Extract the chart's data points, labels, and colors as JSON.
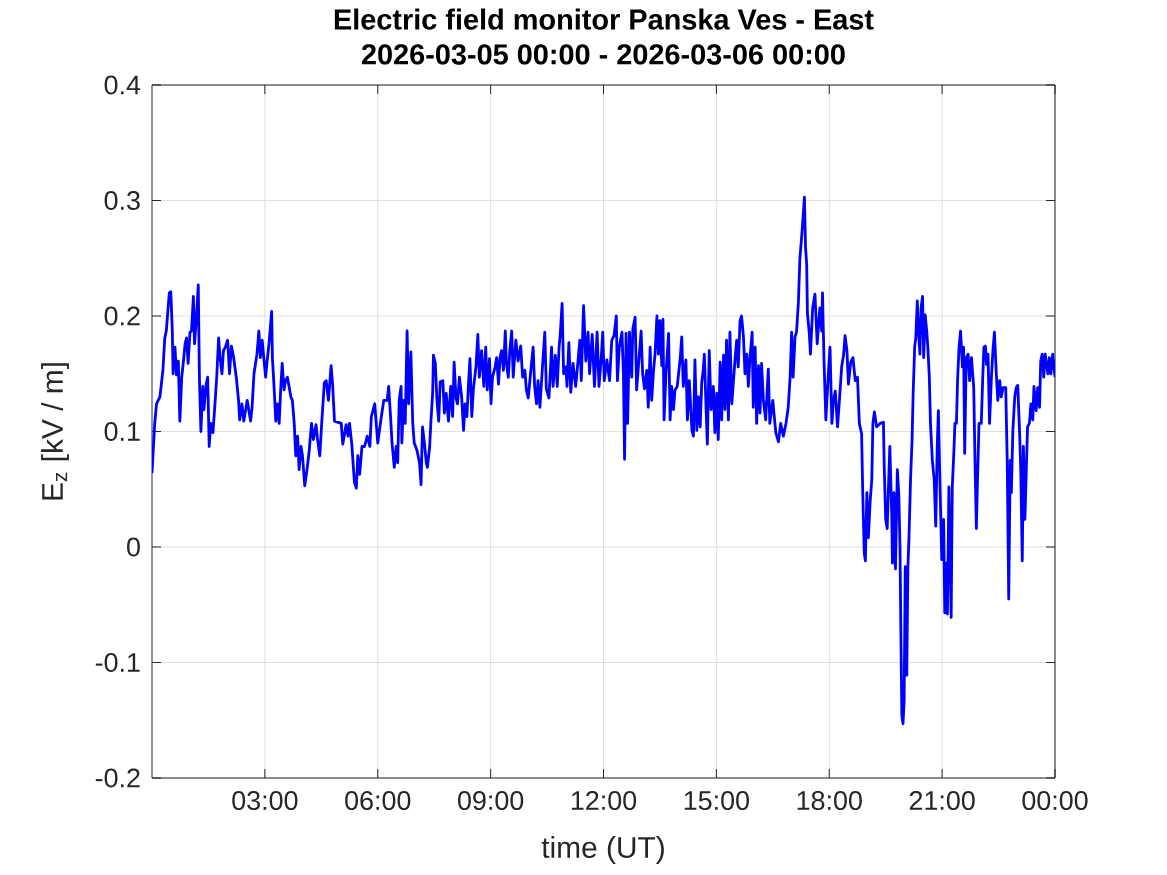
{
  "chart_data": {
    "type": "line",
    "title": "Electric field monitor Panska Ves - East",
    "subtitle": "2026-03-05 00:00 - 2026-03-06 00:00",
    "xlabel": "time (UT)",
    "ylabel": "E$_{z}$ [kV / m]",
    "xlim": [
      0,
      24
    ],
    "ylim": [
      -0.2,
      0.4
    ],
    "xticks": [
      {
        "value": 3,
        "label": "03:00"
      },
      {
        "value": 6,
        "label": "06:00"
      },
      {
        "value": 9,
        "label": "09:00"
      },
      {
        "value": 12,
        "label": "12:00"
      },
      {
        "value": 15,
        "label": "15:00"
      },
      {
        "value": 18,
        "label": "18:00"
      },
      {
        "value": 21,
        "label": "21:00"
      },
      {
        "value": 24,
        "label": "00:00"
      }
    ],
    "yticks": [
      -0.2,
      -0.1,
      0,
      0.1,
      0.2,
      0.3,
      0.4
    ],
    "grid": true,
    "x": [
      0.0,
      0.07,
      0.12,
      0.21,
      0.29,
      0.34,
      0.38,
      0.46,
      0.5,
      0.54,
      0.56,
      0.61,
      0.65,
      0.7,
      0.74,
      0.79,
      0.83,
      0.88,
      0.92,
      0.96,
      1.01,
      1.05,
      1.1,
      1.13,
      1.17,
      1.23,
      1.26,
      1.3,
      1.35,
      1.38,
      1.44,
      1.48,
      1.52,
      1.56,
      1.62,
      1.68,
      1.72,
      1.77,
      1.81,
      1.86,
      1.9,
      1.95,
      2.01,
      2.06,
      2.11,
      2.17,
      2.24,
      2.3,
      2.33,
      2.39,
      2.44,
      2.53,
      2.62,
      2.66,
      2.71,
      2.79,
      2.84,
      2.88,
      2.93,
      2.97,
      3.02,
      3.06,
      3.11,
      3.18,
      3.2,
      3.24,
      3.29,
      3.33,
      3.38,
      3.42,
      3.46,
      3.51,
      3.55,
      3.6,
      3.69,
      3.73,
      3.78,
      3.82,
      3.87,
      3.91,
      3.96,
      4.0,
      4.06,
      4.12,
      4.18,
      4.24,
      4.29,
      4.36,
      4.4,
      4.46,
      4.51,
      4.58,
      4.63,
      4.69,
      4.76,
      4.8,
      4.85,
      5.03,
      5.07,
      5.16,
      5.21,
      5.25,
      5.31,
      5.38,
      5.43,
      5.47,
      5.52,
      5.58,
      5.65,
      5.72,
      5.79,
      5.83,
      5.92,
      6.0,
      6.07,
      6.16,
      6.25,
      6.29,
      6.34,
      6.38,
      6.44,
      6.49,
      6.53,
      6.57,
      6.62,
      6.64,
      6.69,
      6.73,
      6.78,
      6.82,
      6.88,
      6.93,
      6.97,
      7.04,
      7.11,
      7.15,
      7.19,
      7.24,
      7.29,
      7.32,
      7.38,
      7.41,
      7.46,
      7.48,
      7.53,
      7.57,
      7.62,
      7.66,
      7.73,
      7.77,
      7.82,
      7.88,
      7.94,
      7.99,
      8.03,
      8.08,
      8.12,
      8.17,
      8.23,
      8.28,
      8.32,
      8.37,
      8.41,
      8.45,
      8.5,
      8.54,
      8.61,
      8.66,
      8.7,
      8.76,
      8.82,
      8.87,
      8.91,
      8.97,
      9.01,
      9.05,
      9.12,
      9.16,
      9.21,
      9.25,
      9.29,
      9.34,
      9.39,
      9.42,
      9.47,
      9.51,
      9.56,
      9.6,
      9.67,
      9.73,
      9.8,
      9.85,
      9.91,
      9.95,
      10.0,
      10.06,
      10.13,
      10.17,
      10.22,
      10.26,
      10.31,
      10.38,
      10.44,
      10.48,
      10.55,
      10.62,
      10.66,
      10.72,
      10.77,
      10.82,
      10.85,
      10.9,
      10.94,
      11.0,
      11.03,
      11.08,
      11.13,
      11.19,
      11.26,
      11.32,
      11.37,
      11.41,
      11.47,
      11.53,
      11.59,
      11.63,
      11.7,
      11.76,
      11.83,
      11.88,
      11.94,
      11.98,
      12.02,
      12.09,
      12.16,
      12.22,
      12.28,
      12.34,
      12.37,
      12.42,
      12.49,
      12.53,
      12.56,
      12.6,
      12.64,
      12.69,
      12.75,
      12.78,
      12.84,
      12.88,
      12.96,
      13.0,
      13.04,
      13.09,
      13.15,
      13.19,
      13.24,
      13.28,
      13.33,
      13.37,
      13.42,
      13.46,
      13.5,
      13.55,
      13.58,
      13.61,
      13.66,
      13.73,
      13.77,
      13.81,
      13.86,
      13.9,
      13.96,
      14.04,
      14.08,
      14.12,
      14.19,
      14.23,
      14.28,
      14.35,
      14.39,
      14.43,
      14.48,
      14.52,
      14.57,
      14.61,
      14.65,
      14.68,
      14.73,
      14.76,
      14.81,
      14.86,
      14.92,
      14.96,
      15.01,
      15.05,
      15.1,
      15.14,
      15.19,
      15.23,
      15.27,
      15.32,
      15.36,
      15.41,
      15.45,
      15.5,
      15.54,
      15.58,
      15.63,
      15.67,
      15.72,
      15.76,
      15.81,
      15.85,
      15.89,
      15.95,
      15.98,
      16.03,
      16.07,
      16.12,
      16.16,
      16.2,
      16.25,
      16.31,
      16.38,
      16.42,
      16.5,
      16.53,
      16.58,
      16.65,
      16.71,
      16.78,
      16.85,
      16.91,
      16.96,
      17.0,
      17.04,
      17.09,
      17.13,
      17.18,
      17.22,
      17.26,
      17.29,
      17.34,
      17.37,
      17.4,
      17.42,
      17.47,
      17.5,
      17.56,
      17.62,
      17.68,
      17.75,
      17.8,
      17.82,
      17.86,
      17.91,
      17.97,
      18.02,
      18.07,
      18.11,
      18.16,
      18.22,
      18.27,
      18.33,
      18.38,
      18.42,
      18.47,
      18.51,
      18.57,
      18.63,
      18.69,
      18.75,
      18.8,
      18.86,
      18.89,
      18.93,
      18.96,
      19.0,
      19.04,
      19.09,
      19.13,
      19.16,
      19.2,
      19.26,
      19.35,
      19.44,
      19.46,
      19.5,
      19.54,
      19.58,
      19.61,
      19.66,
      19.68,
      19.72,
      19.76,
      19.81,
      19.85,
      19.88,
      19.91,
      19.93,
      19.96,
      19.99,
      20.02,
      20.06,
      20.09,
      20.12,
      20.16,
      20.2,
      20.23,
      20.27,
      20.3,
      20.34,
      20.37,
      20.41,
      20.44,
      20.48,
      20.51,
      20.55,
      20.59,
      20.62,
      20.66,
      20.69,
      20.74,
      20.79,
      20.83,
      20.87,
      20.9,
      20.94,
      20.99,
      21.04,
      21.07,
      21.11,
      21.14,
      21.18,
      21.2,
      21.24,
      21.27,
      21.31,
      21.34,
      21.38,
      21.41,
      21.45,
      21.49,
      21.54,
      21.57,
      21.6,
      21.64,
      21.69,
      21.73,
      21.78,
      21.84,
      21.87,
      21.91,
      21.94,
      21.98,
      22.04,
      22.08,
      22.11,
      22.15,
      22.18,
      22.22,
      22.26,
      22.31,
      22.35,
      22.39,
      22.44,
      22.48,
      22.53,
      22.57,
      22.62,
      22.69,
      22.73,
      22.77,
      22.81,
      22.84,
      22.88,
      22.93,
      22.97,
      23.01,
      23.06,
      23.09,
      23.13,
      23.16,
      23.2,
      23.23,
      23.27,
      23.32,
      23.36,
      23.41,
      23.44,
      23.5,
      23.54,
      23.59,
      23.62,
      23.66,
      23.7,
      23.74,
      23.81,
      23.85,
      23.89,
      23.94,
      24.0
    ],
    "series": [
      {
        "color": "#0000ff",
        "values": [
          0.064,
          0.106,
          0.124,
          0.13,
          0.153,
          0.181,
          0.187,
          0.22,
          0.221,
          0.187,
          0.15,
          0.173,
          0.149,
          0.161,
          0.109,
          0.147,
          0.159,
          0.176,
          0.181,
          0.159,
          0.186,
          0.187,
          0.217,
          0.176,
          0.193,
          0.227,
          0.147,
          0.1,
          0.139,
          0.119,
          0.141,
          0.147,
          0.087,
          0.107,
          0.099,
          0.127,
          0.147,
          0.181,
          0.164,
          0.15,
          0.17,
          0.173,
          0.179,
          0.15,
          0.174,
          0.164,
          0.147,
          0.127,
          0.11,
          0.124,
          0.109,
          0.127,
          0.109,
          0.121,
          0.15,
          0.167,
          0.187,
          0.164,
          0.179,
          0.164,
          0.147,
          0.161,
          0.176,
          0.204,
          0.164,
          0.141,
          0.109,
          0.124,
          0.107,
          0.136,
          0.159,
          0.136,
          0.144,
          0.147,
          0.13,
          0.127,
          0.107,
          0.079,
          0.096,
          0.067,
          0.087,
          0.079,
          0.053,
          0.067,
          0.084,
          0.107,
          0.093,
          0.106,
          0.093,
          0.079,
          0.107,
          0.142,
          0.144,
          0.127,
          0.157,
          0.141,
          0.109,
          0.107,
          0.089,
          0.106,
          0.096,
          0.107,
          0.089,
          0.056,
          0.051,
          0.079,
          0.063,
          0.087,
          0.087,
          0.096,
          0.087,
          0.113,
          0.124,
          0.09,
          0.107,
          0.127,
          0.127,
          0.139,
          0.113,
          0.09,
          0.069,
          0.087,
          0.073,
          0.127,
          0.139,
          0.09,
          0.127,
          0.107,
          0.187,
          0.124,
          0.169,
          0.107,
          0.09,
          0.084,
          0.073,
          0.054,
          0.104,
          0.09,
          0.073,
          0.069,
          0.087,
          0.107,
          0.134,
          0.166,
          0.159,
          0.129,
          0.109,
          0.143,
          0.144,
          0.116,
          0.133,
          0.109,
          0.139,
          0.113,
          0.16,
          0.129,
          0.124,
          0.147,
          0.13,
          0.101,
          0.124,
          0.113,
          0.14,
          0.163,
          0.113,
          0.136,
          0.156,
          0.184,
          0.147,
          0.17,
          0.139,
          0.173,
          0.136,
          0.163,
          0.124,
          0.147,
          0.156,
          0.164,
          0.141,
          0.164,
          0.17,
          0.153,
          0.187,
          0.159,
          0.147,
          0.17,
          0.187,
          0.147,
          0.179,
          0.161,
          0.174,
          0.147,
          0.153,
          0.136,
          0.129,
          0.15,
          0.173,
          0.139,
          0.124,
          0.144,
          0.121,
          0.157,
          0.186,
          0.137,
          0.129,
          0.173,
          0.139,
          0.166,
          0.139,
          0.173,
          0.184,
          0.211,
          0.15,
          0.156,
          0.139,
          0.177,
          0.134,
          0.159,
          0.139,
          0.16,
          0.179,
          0.144,
          0.209,
          0.161,
          0.186,
          0.15,
          0.184,
          0.139,
          0.186,
          0.139,
          0.164,
          0.186,
          0.144,
          0.162,
          0.144,
          0.179,
          0.183,
          0.2,
          0.144,
          0.173,
          0.186,
          0.15,
          0.076,
          0.185,
          0.107,
          0.186,
          0.147,
          0.189,
          0.199,
          0.136,
          0.17,
          0.187,
          0.15,
          0.137,
          0.153,
          0.121,
          0.173,
          0.127,
          0.153,
          0.167,
          0.2,
          0.167,
          0.196,
          0.157,
          0.197,
          0.11,
          0.15,
          0.185,
          0.11,
          0.139,
          0.119,
          0.136,
          0.139,
          0.164,
          0.182,
          0.139,
          0.162,
          0.11,
          0.144,
          0.101,
          0.096,
          0.162,
          0.101,
          0.13,
          0.104,
          0.142,
          0.153,
          0.167,
          0.116,
          0.089,
          0.17,
          0.119,
          0.139,
          0.099,
          0.133,
          0.093,
          0.16,
          0.11,
          0.166,
          0.119,
          0.179,
          0.11,
          0.186,
          0.124,
          0.142,
          0.164,
          0.179,
          0.156,
          0.196,
          0.2,
          0.182,
          0.15,
          0.167,
          0.139,
          0.162,
          0.186,
          0.121,
          0.173,
          0.107,
          0.157,
          0.116,
          0.159,
          0.127,
          0.11,
          0.154,
          0.107,
          0.127,
          0.116,
          0.099,
          0.091,
          0.107,
          0.096,
          0.107,
          0.121,
          0.147,
          0.186,
          0.147,
          0.182,
          0.186,
          0.212,
          0.25,
          0.266,
          0.279,
          0.303,
          0.259,
          0.245,
          0.202,
          0.185,
          0.167,
          0.207,
          0.219,
          0.176,
          0.207,
          0.187,
          0.22,
          0.162,
          0.11,
          0.147,
          0.173,
          0.107,
          0.127,
          0.135,
          0.104,
          0.127,
          0.156,
          0.166,
          0.183,
          0.17,
          0.141,
          0.16,
          0.164,
          0.144,
          0.147,
          0.107,
          0.098,
          0.047,
          -0.005,
          -0.012,
          0.047,
          0.008,
          0.041,
          0.058,
          0.107,
          0.117,
          0.104,
          0.107,
          0.108,
          0.071,
          0.024,
          0.016,
          0.058,
          0.087,
          0.029,
          -0.014,
          0.047,
          -0.019,
          0.067,
          0.044,
          0.0,
          -0.094,
          -0.146,
          -0.153,
          -0.134,
          -0.017,
          -0.111,
          -0.017,
          0.009,
          0.058,
          0.092,
          0.133,
          0.173,
          0.181,
          0.213,
          0.187,
          0.167,
          0.207,
          0.217,
          0.164,
          0.201,
          0.187,
          0.173,
          0.147,
          0.107,
          0.075,
          0.058,
          0.018,
          0.087,
          0.118,
          0.058,
          -0.011,
          0.024,
          -0.057,
          -0.014,
          -0.058,
          0.052,
          0.012,
          -0.061,
          0.052,
          0.081,
          0.107,
          0.107,
          0.144,
          0.173,
          0.187,
          0.156,
          0.173,
          0.081,
          0.164,
          0.167,
          0.144,
          0.164,
          0.138,
          0.081,
          0.016,
          0.058,
          0.107,
          0.107,
          0.147,
          0.173,
          0.174,
          0.158,
          0.167,
          0.107,
          0.147,
          0.17,
          0.186,
          0.15,
          0.127,
          0.144,
          0.13,
          0.138,
          0.138,
          0.075,
          -0.045,
          0.075,
          0.047,
          0.101,
          0.13,
          0.138,
          0.14,
          0.098,
          0.067,
          -0.012,
          0.087,
          0.024,
          0.058,
          0.104,
          0.107,
          0.124,
          0.11,
          0.139,
          0.118,
          0.138,
          0.121,
          0.161,
          0.167,
          0.147,
          0.167,
          0.15,
          0.164,
          0.15,
          0.167,
          0.147
        ]
      }
    ]
  }
}
